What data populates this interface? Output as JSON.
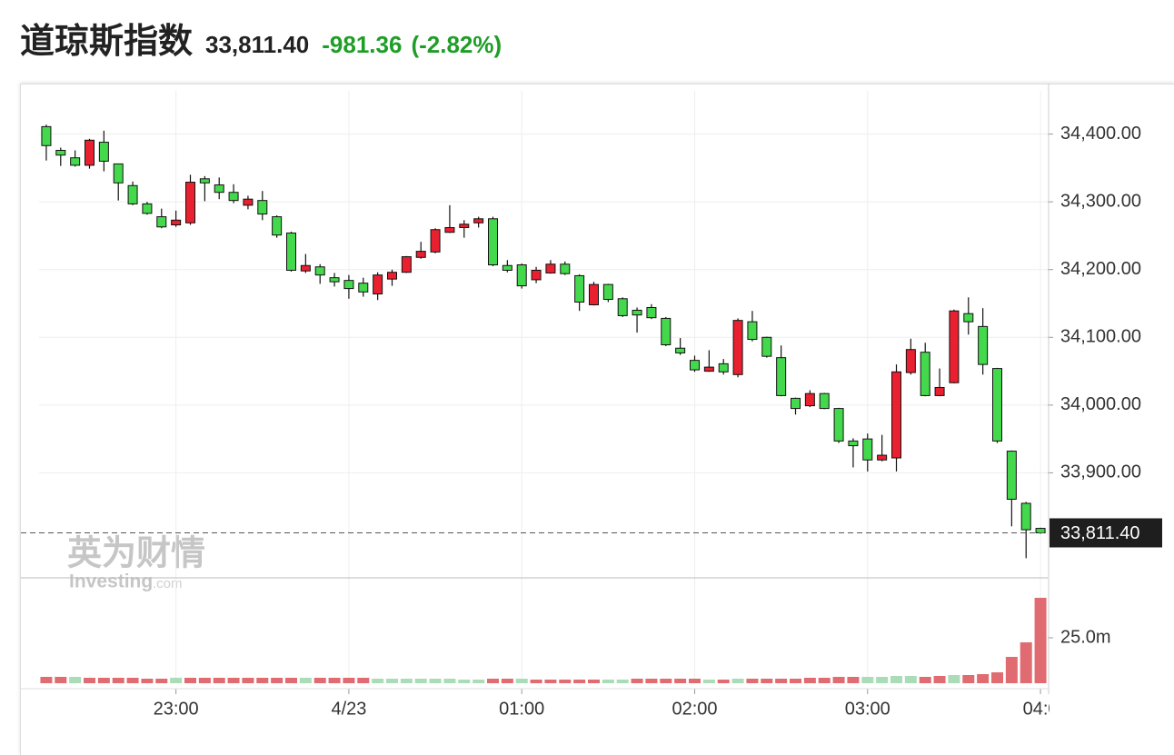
{
  "header": {
    "title": "道琼斯指数",
    "price": "33,811.40",
    "change": "-981.36",
    "change_pct": "(-2.82%)"
  },
  "watermark": {
    "brand": "英为财情",
    "sub": "Investing",
    "domain": ".com"
  },
  "chart_data": {
    "type": "candlestick",
    "categories": [
      null,
      null,
      null,
      null,
      null,
      null,
      null,
      null,
      null,
      "23:00",
      null,
      null,
      null,
      null,
      null,
      null,
      null,
      null,
      null,
      null,
      null,
      "4/23",
      null,
      null,
      null,
      null,
      null,
      null,
      null,
      null,
      null,
      null,
      null,
      "01:00",
      null,
      null,
      null,
      null,
      null,
      null,
      null,
      null,
      null,
      null,
      null,
      "02:00",
      null,
      null,
      null,
      null,
      null,
      null,
      null,
      null,
      null,
      null,
      null,
      "03:00",
      null,
      null,
      null,
      null,
      null,
      null,
      null,
      null,
      null,
      null,
      null,
      "04:0"
    ],
    "open": [
      34411,
      34376,
      34365,
      34354,
      34388,
      34356,
      34324,
      34297,
      34278,
      34266,
      34269,
      34334,
      34325,
      34314,
      34295,
      34302,
      34278,
      34254,
      34198,
      34204,
      34188,
      34184,
      34180,
      34164,
      34186,
      34196,
      34218,
      34226,
      34255,
      34262,
      34269,
      34275,
      34206,
      34207,
      34185,
      34195,
      34208,
      34191,
      34148,
      34178,
      34157,
      34140,
      34144,
      34128,
      34084,
      34066,
      34050,
      34061,
      34045,
      34123,
      34100,
      34070,
      34010,
      33999,
      34017,
      33995,
      33947,
      33950,
      33919,
      33922,
      34048,
      34078,
      34014,
      34033,
      34135,
      34116,
      34054,
      33932,
      33855,
      33818
    ],
    "high": [
      34414,
      34380,
      34376,
      34393,
      34405,
      34356,
      34330,
      34300,
      34290,
      34287,
      34340,
      34338,
      34336,
      34326,
      34309,
      34316,
      34280,
      34256,
      34223,
      34208,
      34195,
      34192,
      34188,
      34196,
      34200,
      34220,
      34241,
      34261,
      34295,
      34273,
      34278,
      34278,
      34214,
      34209,
      34204,
      34214,
      34212,
      34193,
      34182,
      34179,
      34159,
      34144,
      34149,
      34130,
      34099,
      34073,
      34081,
      34068,
      34128,
      34139,
      34101,
      34088,
      34011,
      34022,
      34018,
      33996,
      33951,
      33958,
      33956,
      34060,
      34098,
      34092,
      34054,
      34141,
      34159,
      34143,
      34055,
      33933,
      33857,
      33819
    ],
    "low": [
      34361,
      34353,
      34352,
      34349,
      34345,
      34302,
      34295,
      34281,
      34261,
      34263,
      34266,
      34301,
      34304,
      34298,
      34289,
      34273,
      34247,
      34197,
      34195,
      34179,
      34175,
      34157,
      34160,
      34155,
      34176,
      34195,
      34216,
      34224,
      34254,
      34247,
      34262,
      34205,
      34196,
      34172,
      34180,
      34194,
      34192,
      34139,
      34147,
      34152,
      34130,
      34107,
      34127,
      34087,
      34074,
      34049,
      34049,
      34045,
      34041,
      34094,
      34070,
      34013,
      33986,
      33997,
      33994,
      33944,
      33908,
      33902,
      33917,
      33902,
      34045,
      34013,
      34013,
      34032,
      34104,
      34045,
      33944,
      33821,
      33774,
      33810
    ],
    "close": [
      34383,
      34369,
      34354,
      34391,
      34360,
      34328,
      34297,
      34283,
      34263,
      34273,
      34329,
      34328,
      34314,
      34302,
      34304,
      34282,
      34251,
      34199,
      34206,
      34192,
      34182,
      34172,
      34167,
      34192,
      34196,
      34219,
      34227,
      34259,
      34262,
      34267,
      34275,
      34207,
      34199,
      34176,
      34199,
      34208,
      34194,
      34152,
      34178,
      34156,
      34132,
      34133,
      34129,
      34089,
      34077,
      34052,
      34056,
      34049,
      34125,
      34097,
      34072,
      34014,
      33995,
      34017,
      33995,
      33947,
      33940,
      33919,
      33926,
      34049,
      34082,
      34014,
      34026,
      34139,
      34123,
      34060,
      33947,
      33861,
      33816,
      33811.4
    ],
    "up_color": "#e8202f",
    "down_color": "#44d84c",
    "ylim": [
      33745,
      34437
    ],
    "yticks": [
      {
        "value": 33900,
        "label": "33,900.00"
      },
      {
        "value": 34000,
        "label": "34,000.00"
      },
      {
        "value": 34100,
        "label": "34,100.00"
      },
      {
        "value": 34200,
        "label": "34,200.00"
      },
      {
        "value": 34300,
        "label": "34,300.00"
      },
      {
        "value": 34400,
        "label": "34,400.00"
      }
    ],
    "last_price": {
      "value": 33811.4,
      "label": "33,811.40"
    },
    "grid": true,
    "volume": {
      "values": [
        3.5,
        3.5,
        3.5,
        3,
        3,
        3,
        3,
        2.5,
        2.5,
        3,
        3,
        3,
        3,
        3,
        3,
        3,
        3,
        3,
        3,
        3,
        3,
        3,
        3,
        2.5,
        2.5,
        2.5,
        2.5,
        2.5,
        2.5,
        2,
        2,
        2.5,
        2.5,
        2.5,
        2,
        2,
        2,
        2,
        2,
        2,
        2,
        2.5,
        2.5,
        2.5,
        2.5,
        2.5,
        2,
        2,
        2.5,
        2.5,
        2.5,
        2.5,
        2.5,
        3,
        3,
        3.5,
        3.5,
        3.5,
        3.5,
        4,
        4,
        3.5,
        4,
        4.5,
        4.5,
        5,
        6,
        14.5,
        22.5,
        47
      ],
      "colors": [
        "#e06b70",
        "#e06b70",
        "#a9dcb7",
        "#e06b70",
        "#e06b70",
        "#e06b70",
        "#e06b70",
        "#e06b70",
        "#e06b70",
        "#a9dcb7",
        "#e06b70",
        "#e06b70",
        "#e06b70",
        "#e06b70",
        "#e06b70",
        "#e06b70",
        "#e06b70",
        "#e06b70",
        "#a9dcb7",
        "#e06b70",
        "#e06b70",
        "#e06b70",
        "#e06b70",
        "#a9dcb7",
        "#a9dcb7",
        "#a9dcb7",
        "#a9dcb7",
        "#a9dcb7",
        "#a9dcb7",
        "#a9dcb7",
        "#a9dcb7",
        "#e06b70",
        "#e06b70",
        "#a9dcb7",
        "#e06b70",
        "#e06b70",
        "#e06b70",
        "#e06b70",
        "#e06b70",
        "#a9dcb7",
        "#a9dcb7",
        "#e06b70",
        "#e06b70",
        "#e06b70",
        "#e06b70",
        "#e06b70",
        "#a9dcb7",
        "#e06b70",
        "#a9dcb7",
        "#e06b70",
        "#e06b70",
        "#e06b70",
        "#e06b70",
        "#e06b70",
        "#e06b70",
        "#e06b70",
        "#e06b70",
        "#a9dcb7",
        "#a9dcb7",
        "#a9dcb7",
        "#a9dcb7",
        "#e06b70",
        "#e06b70",
        "#a9dcb7",
        "#e06b70",
        "#e06b70",
        "#e06b70",
        "#e06b70",
        "#e06b70",
        "#e06b70"
      ],
      "ylim": [
        0,
        58
      ],
      "yticks": [
        {
          "value": 25,
          "label": "25.0m"
        }
      ]
    }
  }
}
